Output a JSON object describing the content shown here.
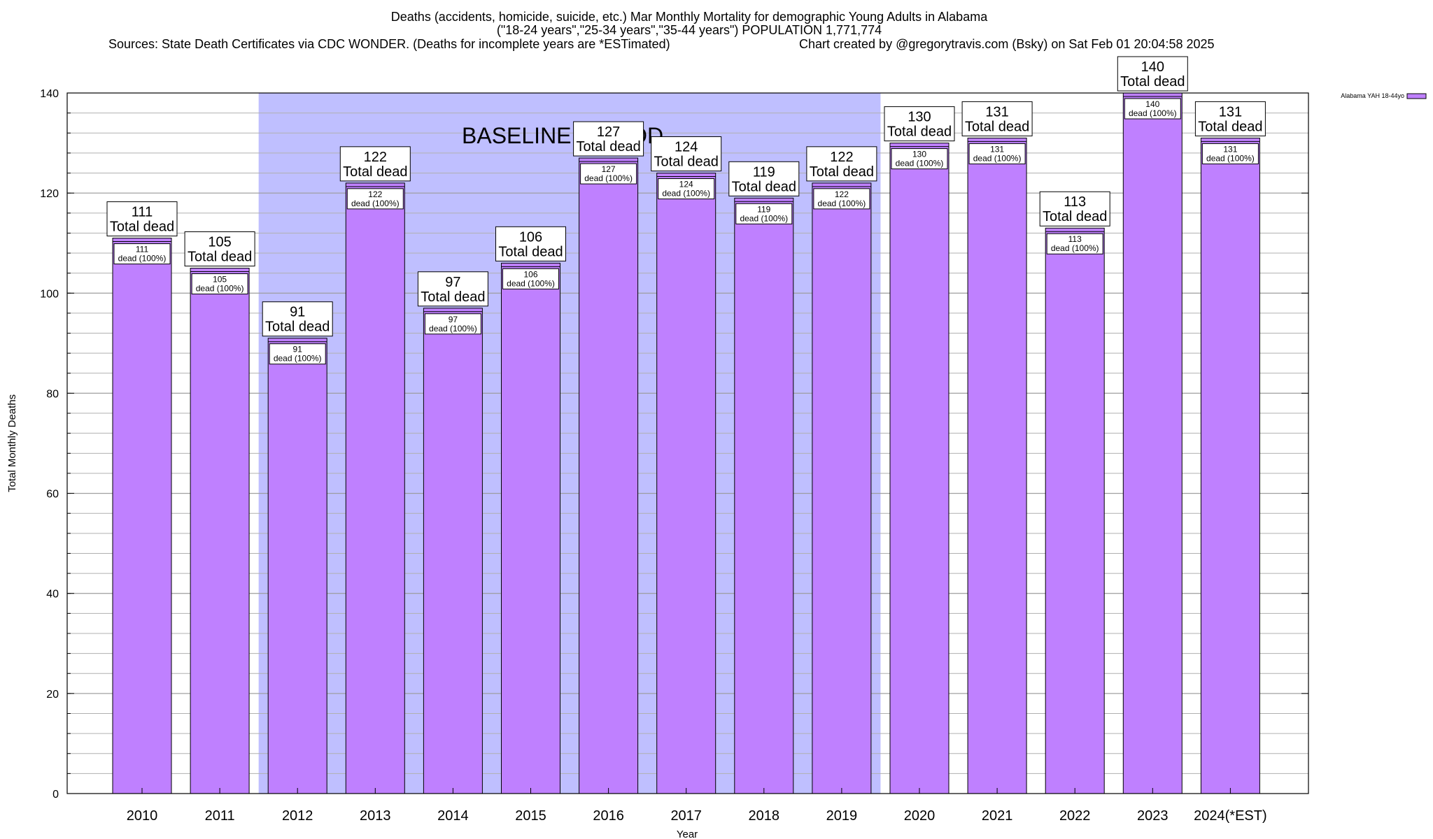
{
  "header": {
    "line1": "Deaths (accidents, homicide, suicide, etc.) Mar Monthly Mortality for demographic Young Adults in Alabama",
    "line2": "(\"18-24 years\",\"25-34 years\",\"35-44 years\") POPULATION 1,771,774",
    "line3_sources": "Sources: State Death Certificates via CDC WONDER. (Deaths for incomplete years are *ESTimated)",
    "line3_credit": "Chart created by @gregorytravis.com (Bsky) on Sat Feb 01 20:04:58 2025"
  },
  "chart_data": {
    "type": "bar",
    "title": "Deaths (accidents, homicide, suicide, etc.) Mar Monthly Mortality for demographic Young Adults in Alabama",
    "xlabel": "Year",
    "ylabel": "Total Monthly Deaths",
    "ylim": [
      0,
      140
    ],
    "yticks": [
      0,
      20,
      40,
      60,
      80,
      100,
      120,
      140
    ],
    "grid": true,
    "legend_position": "top-right",
    "categories": [
      "2010",
      "2011",
      "2012",
      "2013",
      "2014",
      "2015",
      "2016",
      "2017",
      "2018",
      "2019",
      "2020",
      "2021",
      "2022",
      "2023",
      "2024(*EST)"
    ],
    "series": [
      {
        "name": "Alabama YAH 18-44yo",
        "values": [
          111,
          105,
          91,
          122,
          97,
          106,
          127,
          124,
          119,
          122,
          130,
          131,
          113,
          140,
          131
        ]
      }
    ],
    "total_label_word": "Total dead",
    "inner_label_suffix": "dead (100%)",
    "baseline_period": {
      "label": "BASELINE PERIOD",
      "start": "2012",
      "end": "2019"
    },
    "colors": {
      "bar": "#bf80ff",
      "baseline": "#bfbfff",
      "grid": "#b0b0b0"
    }
  }
}
